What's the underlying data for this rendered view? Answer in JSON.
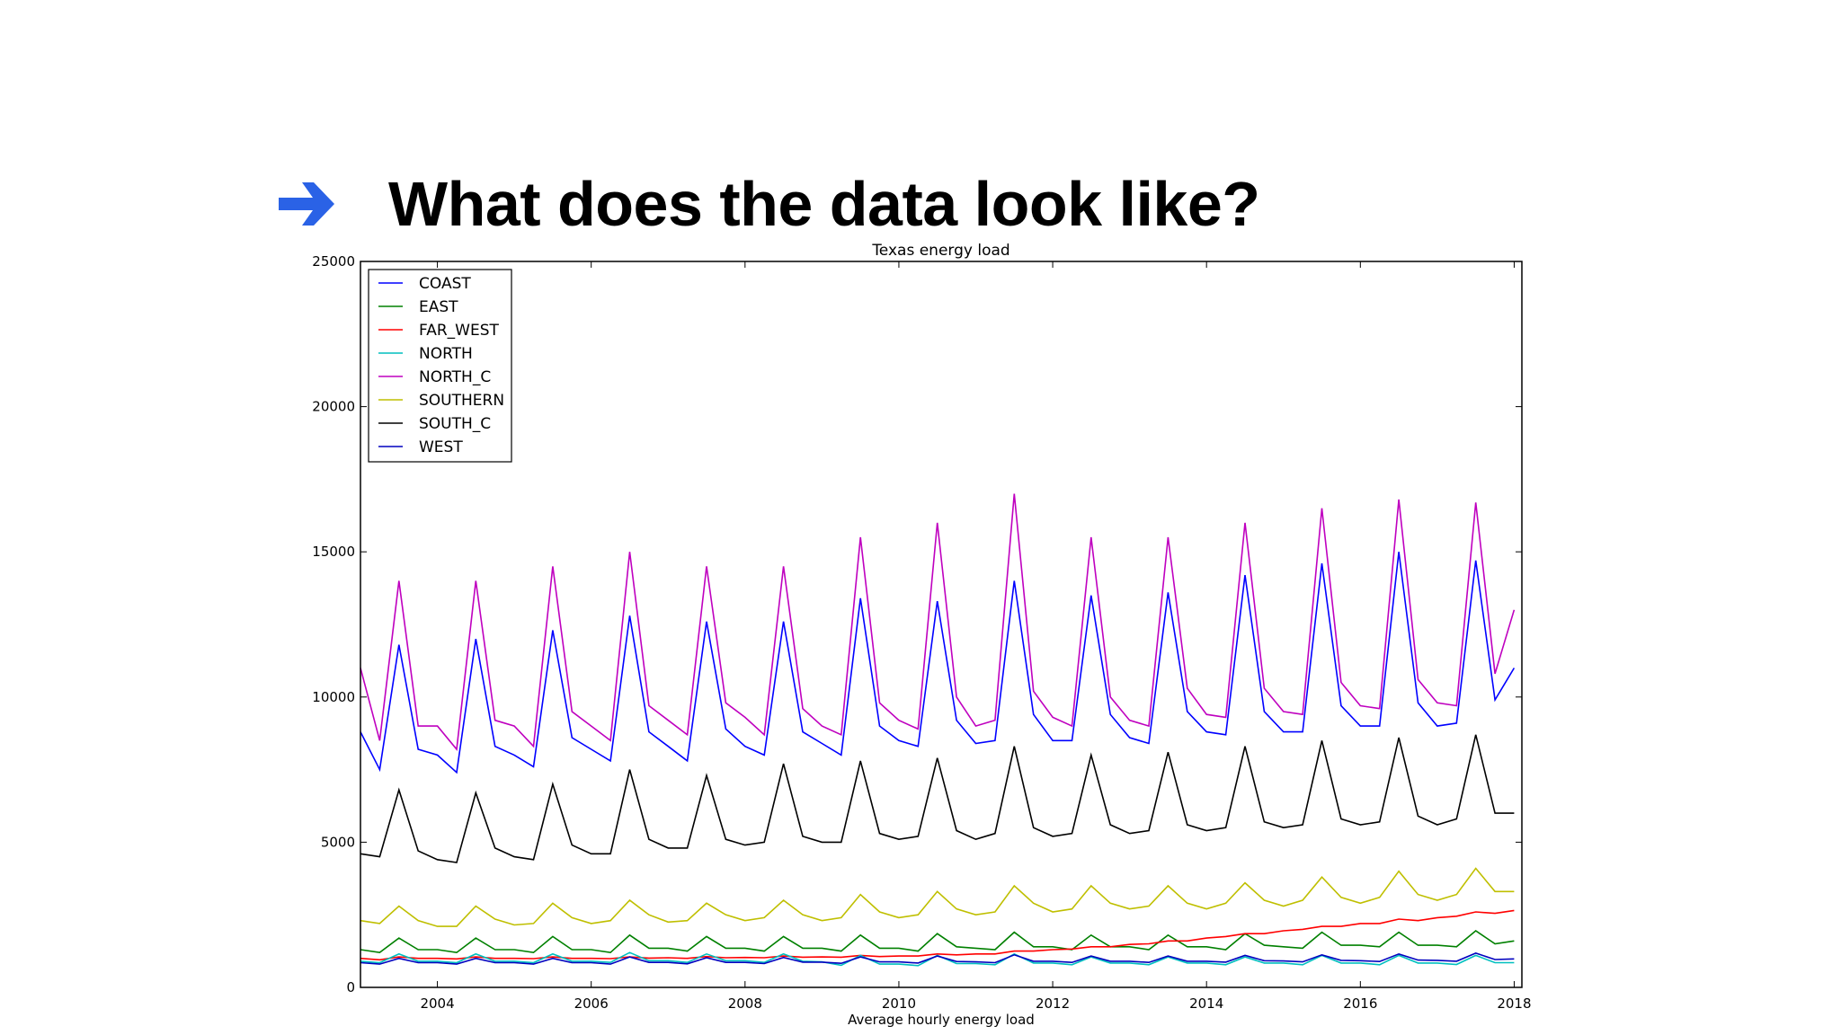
{
  "slide": {
    "heading": "What does the data look like?",
    "arrow_icon": "right-arrow-icon",
    "arrow_color": "#2a62e6"
  },
  "chart_data": {
    "type": "line",
    "title": "Texas energy load",
    "xlabel": "Average hourly energy load",
    "ylabel": "",
    "xlim": [
      2003.0,
      2018.1
    ],
    "ylim": [
      0,
      25000
    ],
    "x_ticks": [
      2004,
      2006,
      2008,
      2010,
      2012,
      2014,
      2016,
      2018
    ],
    "y_ticks": [
      0,
      5000,
      10000,
      15000,
      20000,
      25000
    ],
    "grid": false,
    "legend_position": "top-left",
    "x": [
      2003.0,
      2003.25,
      2003.5,
      2003.75,
      2004.0,
      2004.25,
      2004.5,
      2004.75,
      2005.0,
      2005.25,
      2005.5,
      2005.75,
      2006.0,
      2006.25,
      2006.5,
      2006.75,
      2007.0,
      2007.25,
      2007.5,
      2007.75,
      2008.0,
      2008.25,
      2008.5,
      2008.75,
      2009.0,
      2009.25,
      2009.5,
      2009.75,
      2010.0,
      2010.25,
      2010.5,
      2010.75,
      2011.0,
      2011.25,
      2011.5,
      2011.75,
      2012.0,
      2012.25,
      2012.5,
      2012.75,
      2013.0,
      2013.25,
      2013.5,
      2013.75,
      2014.0,
      2014.25,
      2014.5,
      2014.75,
      2015.0,
      2015.25,
      2015.5,
      2015.75,
      2016.0,
      2016.25,
      2016.5,
      2016.75,
      2017.0,
      2017.25,
      2017.5,
      2017.75,
      2018.0
    ],
    "series": [
      {
        "name": "COAST",
        "color": "#0000ff",
        "values": [
          8800,
          7500,
          11800,
          8200,
          8000,
          7400,
          12000,
          8300,
          8000,
          7600,
          12300,
          8600,
          8200,
          7800,
          12800,
          8800,
          8300,
          7800,
          12600,
          8900,
          8300,
          8000,
          12600,
          8800,
          8400,
          8000,
          13400,
          9000,
          8500,
          8300,
          13300,
          9200,
          8400,
          8500,
          14000,
          9400,
          8500,
          8500,
          13500,
          9400,
          8600,
          8400,
          13600,
          9500,
          8800,
          8700,
          14200,
          9500,
          8800,
          8800,
          14600,
          9700,
          9000,
          9000,
          15000,
          9800,
          9000,
          9100,
          14700,
          9900,
          11000
        ]
      },
      {
        "name": "EAST",
        "color": "#008000",
        "values": [
          1300,
          1200,
          1700,
          1300,
          1300,
          1200,
          1700,
          1300,
          1300,
          1200,
          1750,
          1300,
          1300,
          1200,
          1800,
          1350,
          1350,
          1250,
          1750,
          1350,
          1350,
          1250,
          1750,
          1350,
          1350,
          1250,
          1800,
          1350,
          1350,
          1250,
          1850,
          1400,
          1350,
          1300,
          1900,
          1400,
          1400,
          1300,
          1800,
          1400,
          1400,
          1300,
          1800,
          1400,
          1400,
          1300,
          1850,
          1450,
          1400,
          1350,
          1900,
          1450,
          1450,
          1400,
          1900,
          1450,
          1450,
          1400,
          1950,
          1500,
          1600
        ]
      },
      {
        "name": "FAR_WEST",
        "color": "#ff0000",
        "values": [
          1000,
          950,
          1050,
          1000,
          1000,
          980,
          1050,
          1000,
          1000,
          990,
          1050,
          1000,
          1000,
          990,
          1050,
          1010,
          1020,
          1000,
          1060,
          1020,
          1030,
          1020,
          1080,
          1040,
          1050,
          1040,
          1100,
          1060,
          1080,
          1080,
          1150,
          1120,
          1150,
          1150,
          1250,
          1250,
          1300,
          1320,
          1400,
          1400,
          1480,
          1500,
          1600,
          1600,
          1700,
          1750,
          1850,
          1850,
          1950,
          2000,
          2100,
          2100,
          2200,
          2200,
          2350,
          2300,
          2400,
          2450,
          2600,
          2550,
          2650
        ]
      },
      {
        "name": "NORTH",
        "color": "#00bfbf",
        "values": [
          900,
          850,
          1150,
          900,
          900,
          850,
          1150,
          900,
          900,
          850,
          1150,
          900,
          900,
          860,
          1200,
          920,
          920,
          860,
          1150,
          920,
          920,
          860,
          1150,
          900,
          880,
          760,
          1100,
          800,
          800,
          750,
          1100,
          820,
          820,
          780,
          1150,
          840,
          840,
          780,
          1050,
          840,
          840,
          780,
          1050,
          840,
          840,
          780,
          1050,
          840,
          840,
          780,
          1100,
          840,
          840,
          780,
          1100,
          840,
          840,
          790,
          1100,
          850,
          850
        ]
      },
      {
        "name": "NORTH_C",
        "color": "#bf00bf",
        "values": [
          11000,
          8500,
          14000,
          9000,
          9000,
          8200,
          14000,
          9200,
          9000,
          8300,
          14500,
          9500,
          9000,
          8500,
          15000,
          9700,
          9200,
          8700,
          14500,
          9800,
          9300,
          8700,
          14500,
          9600,
          9000,
          8700,
          15500,
          9800,
          9200,
          8900,
          16000,
          10000,
          9000,
          9200,
          17000,
          10200,
          9300,
          9000,
          15500,
          10000,
          9200,
          9000,
          15500,
          10300,
          9400,
          9300,
          16000,
          10300,
          9500,
          9400,
          16500,
          10500,
          9700,
          9600,
          16800,
          10600,
          9800,
          9700,
          16700,
          10800,
          13000
        ]
      },
      {
        "name": "SOUTHERN",
        "color": "#bfbf00",
        "values": [
          2300,
          2200,
          2800,
          2300,
          2100,
          2100,
          2800,
          2350,
          2150,
          2200,
          2900,
          2400,
          2200,
          2300,
          3000,
          2500,
          2250,
          2300,
          2900,
          2500,
          2300,
          2400,
          3000,
          2500,
          2300,
          2400,
          3200,
          2600,
          2400,
          2500,
          3300,
          2700,
          2500,
          2600,
          3500,
          2900,
          2600,
          2700,
          3500,
          2900,
          2700,
          2800,
          3500,
          2900,
          2700,
          2900,
          3600,
          3000,
          2800,
          3000,
          3800,
          3100,
          2900,
          3100,
          4000,
          3200,
          3000,
          3200,
          4100,
          3300,
          3300
        ]
      },
      {
        "name": "SOUTH_C",
        "color": "#000000",
        "values": [
          4600,
          4500,
          6800,
          4700,
          4400,
          4300,
          6700,
          4800,
          4500,
          4400,
          7000,
          4900,
          4600,
          4600,
          7500,
          5100,
          4800,
          4800,
          7300,
          5100,
          4900,
          5000,
          7700,
          5200,
          5000,
          5000,
          7800,
          5300,
          5100,
          5200,
          7900,
          5400,
          5100,
          5300,
          8300,
          5500,
          5200,
          5300,
          8000,
          5600,
          5300,
          5400,
          8100,
          5600,
          5400,
          5500,
          8300,
          5700,
          5500,
          5600,
          8500,
          5800,
          5600,
          5700,
          8600,
          5900,
          5600,
          5800,
          8700,
          6000,
          6000
        ]
      },
      {
        "name": "WEST",
        "color": "#0000bf",
        "values": [
          850,
          800,
          1000,
          850,
          850,
          800,
          1000,
          850,
          850,
          800,
          1000,
          850,
          850,
          800,
          1050,
          860,
          860,
          810,
          1020,
          860,
          860,
          820,
          1030,
          870,
          870,
          830,
          1050,
          880,
          880,
          840,
          1080,
          890,
          880,
          850,
          1120,
          900,
          900,
          860,
          1080,
          900,
          900,
          860,
          1080,
          900,
          900,
          870,
          1100,
          920,
          910,
          880,
          1120,
          930,
          920,
          890,
          1150,
          940,
          930,
          900,
          1180,
          960,
          980
        ]
      }
    ]
  }
}
